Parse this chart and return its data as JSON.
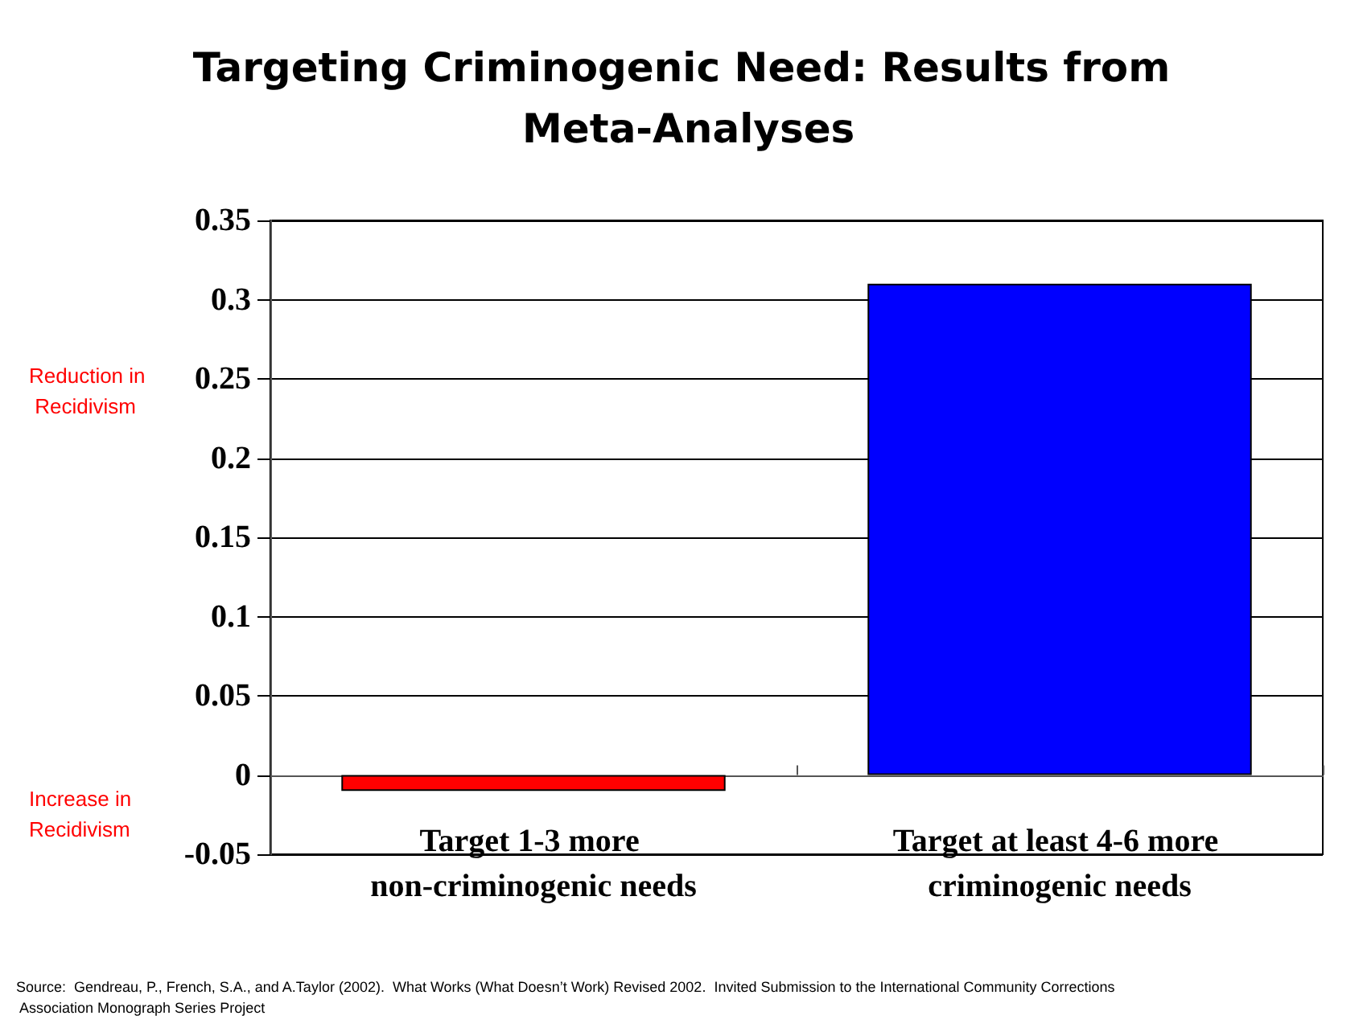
{
  "chart_data": {
    "type": "bar",
    "title": "Targeting Criminogenic Need: Results from Meta-Analyses",
    "categories": [
      "Target 1-3 more non-criminogenic needs",
      "Target at least 4-6 more criminogenic needs"
    ],
    "values": [
      -0.01,
      0.31
    ],
    "colors": [
      "#ff0000",
      "#0000ff"
    ],
    "ylim": [
      -0.05,
      0.35
    ],
    "yticks": [
      -0.05,
      0,
      0.05,
      0.1,
      0.15,
      0.2,
      0.25,
      0.3,
      0.35
    ],
    "grid": "y",
    "annotations": [
      "Reduction in Recidivism",
      "Increase in Recidivism",
      "Source:  Gendreau, P., French, S.A., and A.Taylor (2002).  What Works (What Doesn’t Work) Revised 2002.  Invited Submission to the International Community Corrections Association Monograph Series Project"
    ]
  }
}
